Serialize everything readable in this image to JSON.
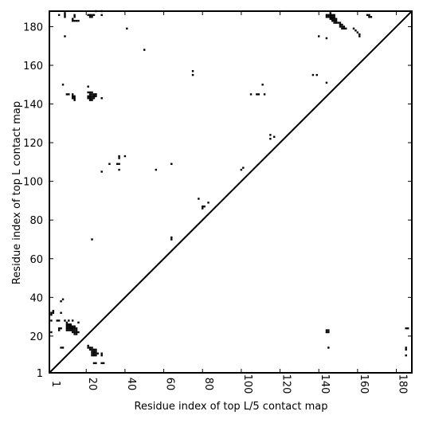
{
  "chart_data": {
    "type": "heatmap",
    "xlabel": "Residue index of top L/5 contact map",
    "ylabel": "Residue index of top L contact map",
    "xlim": [
      1,
      188
    ],
    "ylim": [
      1,
      188
    ],
    "xticks": [
      "1",
      "20",
      "40",
      "60",
      "80",
      "100",
      "120",
      "140",
      "160",
      "180"
    ],
    "yticks": [
      "1",
      "20",
      "40",
      "60",
      "80",
      "100",
      "120",
      "140",
      "160",
      "180"
    ],
    "xtick_values": [
      1,
      20,
      40,
      60,
      80,
      100,
      120,
      140,
      160,
      180
    ],
    "ytick_values": [
      1,
      20,
      40,
      60,
      80,
      100,
      120,
      140,
      160,
      180
    ],
    "diagonal": true,
    "cell_color": "#000000",
    "background": "#ffffff",
    "upper_left_contacts_top_L": [
      [
        6,
        186
      ],
      [
        9,
        186
      ],
      [
        9,
        187
      ],
      [
        9,
        185
      ],
      [
        14,
        186
      ],
      [
        14,
        185
      ],
      [
        13,
        184
      ],
      [
        13,
        183
      ],
      [
        14,
        183
      ],
      [
        15,
        183
      ],
      [
        16,
        183
      ],
      [
        21,
        186
      ],
      [
        22,
        186
      ],
      [
        22,
        185
      ],
      [
        23,
        185
      ],
      [
        23,
        186
      ],
      [
        24,
        186
      ],
      [
        25,
        188
      ],
      [
        28,
        186
      ],
      [
        28,
        188
      ],
      [
        9,
        175
      ],
      [
        41,
        179
      ],
      [
        50,
        168
      ],
      [
        146,
        187
      ],
      [
        144,
        186
      ],
      [
        145,
        186
      ],
      [
        146,
        186
      ],
      [
        147,
        186
      ],
      [
        148,
        186
      ],
      [
        144,
        185
      ],
      [
        145,
        185
      ],
      [
        146,
        185
      ],
      [
        147,
        185
      ],
      [
        148,
        185
      ],
      [
        146,
        184
      ],
      [
        147,
        184
      ],
      [
        148,
        184
      ],
      [
        149,
        184
      ],
      [
        147,
        183
      ],
      [
        148,
        183
      ],
      [
        149,
        183
      ],
      [
        148,
        182
      ],
      [
        149,
        182
      ],
      [
        150,
        182
      ],
      [
        151,
        182
      ],
      [
        151,
        181
      ],
      [
        152,
        181
      ],
      [
        151,
        180
      ],
      [
        152,
        180
      ],
      [
        153,
        180
      ],
      [
        152,
        179
      ],
      [
        153,
        179
      ],
      [
        154,
        179
      ],
      [
        158,
        179
      ],
      [
        159,
        178
      ],
      [
        160,
        177
      ],
      [
        161,
        176
      ],
      [
        161,
        175
      ],
      [
        140,
        175
      ],
      [
        144,
        174
      ],
      [
        165,
        186
      ],
      [
        166,
        186
      ],
      [
        166,
        185
      ],
      [
        167,
        185
      ],
      [
        8,
        150
      ],
      [
        10,
        145
      ],
      [
        11,
        145
      ],
      [
        13,
        145
      ],
      [
        13,
        144
      ],
      [
        14,
        144
      ],
      [
        13,
        143
      ],
      [
        14,
        143
      ],
      [
        14,
        142
      ],
      [
        21,
        149
      ],
      [
        21,
        146
      ],
      [
        22,
        146
      ],
      [
        23,
        146
      ],
      [
        22,
        145
      ],
      [
        23,
        145
      ],
      [
        24,
        145
      ],
      [
        25,
        145
      ],
      [
        21,
        144
      ],
      [
        22,
        144
      ],
      [
        23,
        144
      ],
      [
        24,
        144
      ],
      [
        25,
        144
      ],
      [
        21,
        143
      ],
      [
        22,
        143
      ],
      [
        23,
        143
      ],
      [
        24,
        143
      ],
      [
        22,
        142
      ],
      [
        23,
        142
      ],
      [
        25,
        145
      ],
      [
        28,
        143
      ],
      [
        75,
        157
      ],
      [
        75,
        155
      ],
      [
        137,
        155
      ],
      [
        139,
        155
      ],
      [
        111,
        150
      ],
      [
        105,
        145
      ],
      [
        108,
        145
      ],
      [
        109,
        145
      ],
      [
        112,
        145
      ],
      [
        115,
        124
      ],
      [
        115,
        122
      ],
      [
        117,
        123
      ],
      [
        144,
        151
      ],
      [
        37,
        113
      ],
      [
        37,
        112
      ],
      [
        40,
        113
      ],
      [
        32,
        109
      ],
      [
        36,
        109
      ],
      [
        37,
        109
      ],
      [
        37,
        106
      ],
      [
        28,
        105
      ],
      [
        56,
        106
      ],
      [
        64,
        109
      ],
      [
        100,
        106
      ],
      [
        101,
        107
      ],
      [
        78,
        91
      ],
      [
        80,
        87
      ],
      [
        81,
        87
      ],
      [
        80,
        86
      ],
      [
        83,
        89
      ],
      [
        23,
        70
      ],
      [
        64,
        71
      ],
      [
        64,
        70
      ]
    ],
    "lower_right_contacts_top_L5": [
      [
        3,
        33
      ],
      [
        2,
        32
      ],
      [
        3,
        32
      ],
      [
        2,
        31
      ],
      [
        8,
        39
      ],
      [
        7,
        38
      ],
      [
        7,
        32
      ],
      [
        2,
        28
      ],
      [
        5,
        28
      ],
      [
        6,
        28
      ],
      [
        2,
        22
      ],
      [
        6,
        24
      ],
      [
        7,
        24
      ],
      [
        6,
        23
      ],
      [
        9,
        28
      ],
      [
        11,
        28
      ],
      [
        13,
        28
      ],
      [
        10,
        27
      ],
      [
        16,
        27
      ],
      [
        10,
        26
      ],
      [
        11,
        26
      ],
      [
        12,
        26
      ],
      [
        10,
        25
      ],
      [
        11,
        25
      ],
      [
        12,
        25
      ],
      [
        13,
        25
      ],
      [
        14,
        25
      ],
      [
        10,
        24
      ],
      [
        11,
        24
      ],
      [
        12,
        24
      ],
      [
        13,
        24
      ],
      [
        14,
        24
      ],
      [
        15,
        24
      ],
      [
        10,
        23
      ],
      [
        11,
        23
      ],
      [
        12,
        23
      ],
      [
        13,
        23
      ],
      [
        14,
        23
      ],
      [
        15,
        23
      ],
      [
        13,
        22
      ],
      [
        14,
        22
      ],
      [
        15,
        22
      ],
      [
        16,
        22
      ],
      [
        14,
        21
      ],
      [
        15,
        21
      ],
      [
        7,
        14
      ],
      [
        8,
        14
      ],
      [
        21,
        15
      ],
      [
        21,
        14
      ],
      [
        22,
        14
      ],
      [
        23,
        14
      ],
      [
        22,
        13
      ],
      [
        23,
        13
      ],
      [
        24,
        13
      ],
      [
        25,
        13
      ],
      [
        23,
        12
      ],
      [
        24,
        12
      ],
      [
        25,
        12
      ],
      [
        23,
        11
      ],
      [
        24,
        11
      ],
      [
        25,
        11
      ],
      [
        26,
        11
      ],
      [
        23,
        10
      ],
      [
        24,
        10
      ],
      [
        25,
        10
      ],
      [
        28,
        11
      ],
      [
        28,
        10
      ],
      [
        24,
        6
      ],
      [
        25,
        6
      ],
      [
        28,
        6
      ],
      [
        29,
        6
      ],
      [
        144,
        23
      ],
      [
        145,
        23
      ],
      [
        144,
        22
      ],
      [
        145,
        22
      ],
      [
        145,
        14
      ],
      [
        185,
        24
      ],
      [
        186,
        24
      ],
      [
        185,
        14
      ],
      [
        185,
        13
      ],
      [
        185,
        10
      ]
    ]
  }
}
